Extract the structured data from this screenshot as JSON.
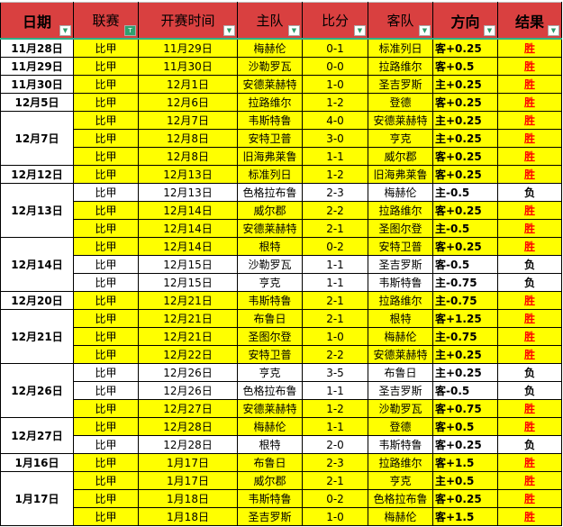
{
  "header": [
    "日期",
    "联赛",
    "开赛时间",
    "主队",
    "比分",
    "客队",
    "方向",
    "结果"
  ],
  "colors": {
    "header_bg": "#d94040",
    "win_row": "#ffff00",
    "lose_row": "#ffffff",
    "win_text": "#ff0000"
  },
  "groups": [
    {
      "date": "11月28日",
      "rows": [
        [
          "比甲",
          "11月29日",
          "梅赫伦",
          "0-1",
          "标准列日",
          "客+0.25",
          "胜"
        ]
      ]
    },
    {
      "date": "11月29日",
      "rows": [
        [
          "比甲",
          "11月30日",
          "沙勒罗瓦",
          "0-0",
          "拉路维尔",
          "客+0.5",
          "胜"
        ]
      ]
    },
    {
      "date": "11月30日",
      "rows": [
        [
          "比甲",
          "12月1日",
          "安德莱赫特",
          "1-0",
          "圣吉罗斯",
          "主+0.25",
          "胜"
        ]
      ]
    },
    {
      "date": "12月5日",
      "rows": [
        [
          "比甲",
          "12月6日",
          "拉路维尔",
          "1-2",
          "登德",
          "客+0.25",
          "胜"
        ]
      ]
    },
    {
      "date": "12月7日",
      "rows": [
        [
          "比甲",
          "12月7日",
          "韦斯特鲁",
          "4-0",
          "安德莱赫特",
          "主+0.25",
          "胜"
        ],
        [
          "比甲",
          "12月8日",
          "安特卫普",
          "3-0",
          "亨克",
          "主+0.25",
          "胜"
        ],
        [
          "比甲",
          "12月8日",
          "旧海弗莱鲁",
          "1-1",
          "威尔郡",
          "客+0.25",
          "胜"
        ]
      ]
    },
    {
      "date": "12月12日",
      "rows": [
        [
          "比甲",
          "12月13日",
          "标准列日",
          "1-2",
          "旧海弗莱鲁",
          "客+0.25",
          "胜"
        ]
      ]
    },
    {
      "date": "12月13日",
      "rows": [
        [
          "比甲",
          "12月13日",
          "色格拉布鲁",
          "2-3",
          "梅赫伦",
          "主-0.5",
          "负"
        ],
        [
          "比甲",
          "12月14日",
          "威尔郡",
          "2-2",
          "拉路维尔",
          "客+0.25",
          "胜"
        ],
        [
          "比甲",
          "12月14日",
          "安德莱赫特",
          "2-1",
          "圣图尔登",
          "主-0.5",
          "胜"
        ]
      ]
    },
    {
      "date": "12月14日",
      "rows": [
        [
          "比甲",
          "12月14日",
          "根特",
          "0-2",
          "安特卫普",
          "客+0.25",
          "胜"
        ],
        [
          "比甲",
          "12月15日",
          "沙勒罗瓦",
          "1-1",
          "圣吉罗斯",
          "客-0.5",
          "负"
        ],
        [
          "比甲",
          "12月15日",
          "亨克",
          "1-1",
          "韦斯特鲁",
          "主-0.75",
          "负"
        ]
      ]
    },
    {
      "date": "12月20日",
      "rows": [
        [
          "比甲",
          "12月21日",
          "韦斯特鲁",
          "2-1",
          "拉路维尔",
          "主-0.75",
          "胜"
        ]
      ]
    },
    {
      "date": "12月21日",
      "rows": [
        [
          "比甲",
          "12月21日",
          "布鲁日",
          "2-1",
          "根特",
          "客+1.25",
          "胜"
        ],
        [
          "比甲",
          "12月21日",
          "圣图尔登",
          "1-0",
          "梅赫伦",
          "主-0.75",
          "胜"
        ],
        [
          "比甲",
          "12月22日",
          "安特卫普",
          "2-2",
          "安德莱赫特",
          "主+0.25",
          "胜"
        ]
      ]
    },
    {
      "date": "12月26日",
      "rows": [
        [
          "比甲",
          "12月26日",
          "亨克",
          "3-5",
          "布鲁日",
          "主+0.25",
          "负"
        ],
        [
          "比甲",
          "12月26日",
          "色格拉布鲁",
          "1-1",
          "圣吉罗斯",
          "客-0.5",
          "负"
        ],
        [
          "比甲",
          "12月27日",
          "安德莱赫特",
          "1-2",
          "沙勒罗瓦",
          "客+0.75",
          "胜"
        ]
      ]
    },
    {
      "date": "12月27日",
      "rows": [
        [
          "比甲",
          "12月28日",
          "梅赫伦",
          "1-1",
          "登德",
          "客+0.5",
          "胜"
        ],
        [
          "比甲",
          "12月28日",
          "根特",
          "2-0",
          "韦斯特鲁",
          "客+0.25",
          "负"
        ]
      ]
    },
    {
      "date": "1月16日",
      "rows": [
        [
          "比甲",
          "1月17日",
          "布鲁日",
          "2-3",
          "拉路维尔",
          "客+1.5",
          "胜"
        ]
      ]
    },
    {
      "date": "1月17日",
      "rows": [
        [
          "比甲",
          "1月17日",
          "威尔郡",
          "2-1",
          "亨克",
          "主+0.5",
          "胜"
        ],
        [
          "比甲",
          "1月18日",
          "韦斯特鲁",
          "0-2",
          "色格拉布鲁",
          "客+0.25",
          "胜"
        ],
        [
          "比甲",
          "1月18日",
          "圣吉罗斯",
          "1-0",
          "梅赫伦",
          "客+1.5",
          "胜"
        ]
      ]
    }
  ]
}
